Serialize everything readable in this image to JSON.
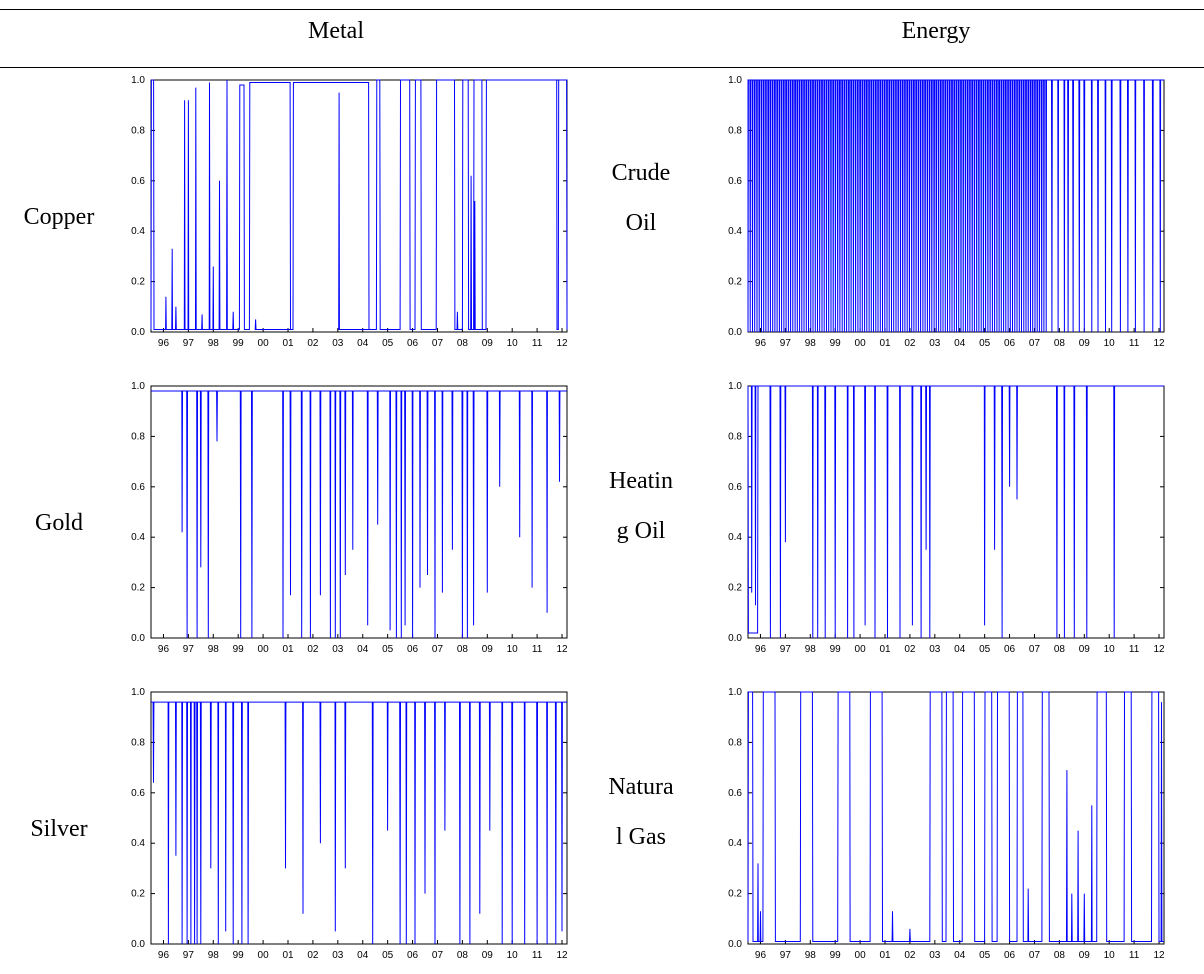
{
  "table": {
    "col_metal": "Metal",
    "col_energy": "Energy",
    "labels": {
      "copper": "Copper",
      "gold": "Gold",
      "silver": "Silver",
      "crude_1": "Crude",
      "crude_2": "Oil",
      "heating_1": "Heatin",
      "heating_2": "g Oil",
      "natgas_1": "Natura",
      "natgas_2": "l Gas"
    }
  },
  "colors": {
    "series": "#0000ff",
    "axis": "#000000"
  },
  "chart_data": [
    {
      "id": "copper",
      "type": "line",
      "ylim": [
        0,
        1
      ],
      "xlim": [
        1995.5,
        2012.2
      ],
      "yticks": [
        "0.0",
        "0.2",
        "0.4",
        "0.6",
        "0.8",
        "1.0"
      ],
      "xticks": [
        "96",
        "97",
        "98",
        "99",
        "00",
        "01",
        "02",
        "03",
        "04",
        "05",
        "06",
        "07",
        "08",
        "09",
        "10",
        "11",
        "12"
      ],
      "base": 0.01,
      "segments": [
        {
          "x0": 1995.5,
          "x1": 1995.62,
          "level": 1.0
        },
        {
          "x0": 1995.62,
          "x1": 1996.1,
          "level": 0.01
        },
        {
          "x0": 1999.05,
          "x1": 1999.25,
          "level": 0.98
        },
        {
          "x0": 1999.45,
          "x1": 2001.1,
          "level": 0.99
        },
        {
          "x0": 2001.2,
          "x1": 2004.25,
          "level": 0.99
        },
        {
          "x0": 2004.55,
          "x1": 2004.7,
          "level": 1.0
        },
        {
          "x0": 2005.5,
          "x1": 2005.9,
          "level": 1.0
        },
        {
          "x0": 2006.1,
          "x1": 2006.35,
          "level": 1.0
        },
        {
          "x0": 2006.95,
          "x1": 2007.7,
          "level": 1.0
        },
        {
          "x0": 2008.0,
          "x1": 2008.25,
          "level": 1.0
        },
        {
          "x0": 2008.45,
          "x1": 2008.8,
          "level": 1.0
        },
        {
          "x0": 2008.95,
          "x1": 2011.8,
          "level": 1.0
        },
        {
          "x0": 2011.85,
          "x1": 2012.2,
          "level": 1.0
        }
      ],
      "spikes": [
        {
          "x": 1996.1,
          "v": 0.14
        },
        {
          "x": 1996.35,
          "v": 0.33
        },
        {
          "x": 1996.5,
          "v": 0.1
        },
        {
          "x": 1996.85,
          "v": 0.92
        },
        {
          "x": 1997.0,
          "v": 0.92
        },
        {
          "x": 1997.3,
          "v": 0.97
        },
        {
          "x": 1997.55,
          "v": 0.07
        },
        {
          "x": 1997.85,
          "v": 0.99
        },
        {
          "x": 1998.0,
          "v": 0.26
        },
        {
          "x": 1998.25,
          "v": 0.6
        },
        {
          "x": 1998.55,
          "v": 1.0
        },
        {
          "x": 1998.8,
          "v": 0.08
        },
        {
          "x": 1999.7,
          "v": 0.05
        },
        {
          "x": 2003.05,
          "v": 0.95
        },
        {
          "x": 2007.8,
          "v": 0.08
        },
        {
          "x": 2008.35,
          "v": 0.62
        },
        {
          "x": 2008.5,
          "v": 0.52
        }
      ]
    },
    {
      "id": "crude",
      "type": "line",
      "ylim": [
        0,
        1
      ],
      "xlim": [
        1995.5,
        2012.2
      ],
      "yticks": [
        "0.0",
        "0.2",
        "0.4",
        "0.6",
        "0.8",
        "1.0"
      ],
      "xticks": [
        "96",
        "97",
        "98",
        "99",
        "00",
        "01",
        "02",
        "03",
        "04",
        "05",
        "06",
        "07",
        "08",
        "09",
        "10",
        "11",
        "12"
      ],
      "base": 1.0,
      "dense": {
        "from": 1995.5,
        "to": 2007.5,
        "step": 0.09,
        "low": 0.0
      },
      "sparse": [
        2007.7,
        2007.95,
        2008.2,
        2008.35,
        2008.55,
        2008.8,
        2009.0,
        2009.3,
        2009.55,
        2009.85,
        2010.1,
        2010.45,
        2010.75,
        2011.05,
        2011.4,
        2011.75,
        2012.05
      ]
    },
    {
      "id": "gold",
      "type": "line",
      "ylim": [
        0,
        1
      ],
      "xlim": [
        1995.5,
        2012.2
      ],
      "yticks": [
        "0.0",
        "0.2",
        "0.4",
        "0.6",
        "0.8",
        "1.0"
      ],
      "xticks": [
        "96",
        "97",
        "98",
        "99",
        "00",
        "01",
        "02",
        "03",
        "04",
        "05",
        "06",
        "07",
        "08",
        "09",
        "10",
        "11",
        "12"
      ],
      "base": 0.98,
      "spikes": [
        {
          "x": 1996.75,
          "v": 0.42
        },
        {
          "x": 1996.95,
          "v": 0.0
        },
        {
          "x": 1997.35,
          "v": 0.0
        },
        {
          "x": 1997.5,
          "v": 0.28
        },
        {
          "x": 1997.8,
          "v": 0.0
        },
        {
          "x": 1998.15,
          "v": 0.78
        },
        {
          "x": 1999.1,
          "v": 0.0
        },
        {
          "x": 1999.55,
          "v": 0.0
        },
        {
          "x": 2000.8,
          "v": 0.0
        },
        {
          "x": 2001.1,
          "v": 0.17
        },
        {
          "x": 2001.55,
          "v": 0.0
        },
        {
          "x": 2001.9,
          "v": 0.0
        },
        {
          "x": 2002.3,
          "v": 0.17
        },
        {
          "x": 2002.7,
          "v": 0.0
        },
        {
          "x": 2002.9,
          "v": 0.0
        },
        {
          "x": 2003.1,
          "v": 0.0
        },
        {
          "x": 2003.3,
          "v": 0.25
        },
        {
          "x": 2003.6,
          "v": 0.35
        },
        {
          "x": 2004.2,
          "v": 0.05
        },
        {
          "x": 2004.6,
          "v": 0.45
        },
        {
          "x": 2005.1,
          "v": 0.03
        },
        {
          "x": 2005.35,
          "v": 0.0
        },
        {
          "x": 2005.55,
          "v": 0.0
        },
        {
          "x": 2005.7,
          "v": 0.05
        },
        {
          "x": 2006.0,
          "v": 0.0
        },
        {
          "x": 2006.3,
          "v": 0.2
        },
        {
          "x": 2006.6,
          "v": 0.25
        },
        {
          "x": 2006.9,
          "v": 0.0
        },
        {
          "x": 2007.2,
          "v": 0.18
        },
        {
          "x": 2007.6,
          "v": 0.35
        },
        {
          "x": 2008.0,
          "v": 0.0
        },
        {
          "x": 2008.2,
          "v": 0.0
        },
        {
          "x": 2008.45,
          "v": 0.05
        },
        {
          "x": 2009.0,
          "v": 0.18
        },
        {
          "x": 2009.5,
          "v": 0.6
        },
        {
          "x": 2010.3,
          "v": 0.4
        },
        {
          "x": 2010.8,
          "v": 0.2
        },
        {
          "x": 2011.4,
          "v": 0.1
        },
        {
          "x": 2011.9,
          "v": 0.62
        }
      ]
    },
    {
      "id": "heating",
      "type": "line",
      "ylim": [
        0,
        1
      ],
      "xlim": [
        1995.5,
        2012.2
      ],
      "yticks": [
        "0.0",
        "0.2",
        "0.4",
        "0.6",
        "0.8",
        "1.0"
      ],
      "xticks": [
        "96",
        "97",
        "98",
        "99",
        "00",
        "01",
        "02",
        "03",
        "04",
        "05",
        "06",
        "07",
        "08",
        "09",
        "10",
        "11",
        "12"
      ],
      "base": 1.0,
      "segments": [
        {
          "x0": 1995.5,
          "x1": 1995.9,
          "level": 0.02
        }
      ],
      "spikes": [
        {
          "x": 1995.65,
          "v": 0.18
        },
        {
          "x": 1995.8,
          "v": 0.13
        },
        {
          "x": 1996.4,
          "v": 0.0
        },
        {
          "x": 1996.8,
          "v": 0.0
        },
        {
          "x": 1997.0,
          "v": 0.38
        },
        {
          "x": 1998.1,
          "v": 0.0
        },
        {
          "x": 1998.3,
          "v": 0.0
        },
        {
          "x": 1998.6,
          "v": 0.0
        },
        {
          "x": 1999.0,
          "v": 0.0
        },
        {
          "x": 1999.5,
          "v": 0.0
        },
        {
          "x": 1999.75,
          "v": 0.0
        },
        {
          "x": 2000.2,
          "v": 0.05
        },
        {
          "x": 2000.6,
          "v": 0.0
        },
        {
          "x": 2001.1,
          "v": 0.0
        },
        {
          "x": 2001.6,
          "v": 0.0
        },
        {
          "x": 2002.1,
          "v": 0.05
        },
        {
          "x": 2002.45,
          "v": 0.0
        },
        {
          "x": 2002.65,
          "v": 0.35
        },
        {
          "x": 2002.8,
          "v": 0.0
        },
        {
          "x": 2005.0,
          "v": 0.05
        },
        {
          "x": 2005.4,
          "v": 0.35
        },
        {
          "x": 2005.7,
          "v": 0.0
        },
        {
          "x": 2006.0,
          "v": 0.6
        },
        {
          "x": 2006.3,
          "v": 0.55
        },
        {
          "x": 2007.9,
          "v": 0.0
        },
        {
          "x": 2008.2,
          "v": 0.0
        },
        {
          "x": 2008.6,
          "v": 0.0
        },
        {
          "x": 2009.1,
          "v": 0.0
        },
        {
          "x": 2010.2,
          "v": 0.0
        }
      ]
    },
    {
      "id": "silver",
      "type": "line",
      "ylim": [
        0,
        1
      ],
      "xlim": [
        1995.5,
        2012.2
      ],
      "yticks": [
        "0.0",
        "0.2",
        "0.4",
        "0.6",
        "0.8",
        "1.0"
      ],
      "xticks": [
        "96",
        "97",
        "98",
        "99",
        "00",
        "01",
        "02",
        "03",
        "04",
        "05",
        "06",
        "07",
        "08",
        "09",
        "10",
        "11",
        "12"
      ],
      "base": 0.96,
      "spikes": [
        {
          "x": 1995.6,
          "v": 0.64
        },
        {
          "x": 1996.2,
          "v": 0.0
        },
        {
          "x": 1996.5,
          "v": 0.35
        },
        {
          "x": 1996.75,
          "v": 0.0
        },
        {
          "x": 1996.95,
          "v": 0.0
        },
        {
          "x": 1997.1,
          "v": 0.0
        },
        {
          "x": 1997.25,
          "v": 0.0
        },
        {
          "x": 1997.35,
          "v": 0.0
        },
        {
          "x": 1997.5,
          "v": 0.0
        },
        {
          "x": 1997.9,
          "v": 0.3
        },
        {
          "x": 1998.2,
          "v": 0.0
        },
        {
          "x": 1998.5,
          "v": 0.05
        },
        {
          "x": 1998.8,
          "v": 0.0
        },
        {
          "x": 1999.15,
          "v": 0.0
        },
        {
          "x": 1999.4,
          "v": 0.0
        },
        {
          "x": 2000.9,
          "v": 0.3
        },
        {
          "x": 2001.6,
          "v": 0.12
        },
        {
          "x": 2002.3,
          "v": 0.4
        },
        {
          "x": 2002.9,
          "v": 0.05
        },
        {
          "x": 2003.3,
          "v": 0.3
        },
        {
          "x": 2004.4,
          "v": 0.0
        },
        {
          "x": 2005.0,
          "v": 0.45
        },
        {
          "x": 2005.5,
          "v": 0.0
        },
        {
          "x": 2005.75,
          "v": 0.0
        },
        {
          "x": 2006.1,
          "v": 0.0
        },
        {
          "x": 2006.5,
          "v": 0.2
        },
        {
          "x": 2006.9,
          "v": 0.0
        },
        {
          "x": 2007.3,
          "v": 0.45
        },
        {
          "x": 2007.9,
          "v": 0.0
        },
        {
          "x": 2008.3,
          "v": 0.0
        },
        {
          "x": 2008.7,
          "v": 0.12
        },
        {
          "x": 2009.1,
          "v": 0.45
        },
        {
          "x": 2009.6,
          "v": 0.0
        },
        {
          "x": 2010.0,
          "v": 0.0
        },
        {
          "x": 2010.5,
          "v": 0.0
        },
        {
          "x": 2011.0,
          "v": 0.0
        },
        {
          "x": 2011.4,
          "v": 0.0
        },
        {
          "x": 2011.75,
          "v": 0.0
        },
        {
          "x": 2012.0,
          "v": 0.05
        }
      ]
    },
    {
      "id": "natgas",
      "type": "line",
      "ylim": [
        0,
        1
      ],
      "xlim": [
        1995.5,
        2012.2
      ],
      "yticks": [
        "0.0",
        "0.2",
        "0.4",
        "0.6",
        "0.8",
        "1.0"
      ],
      "xticks": [
        "96",
        "97",
        "98",
        "99",
        "00",
        "01",
        "02",
        "03",
        "04",
        "05",
        "06",
        "07",
        "08",
        "09",
        "10",
        "11",
        "12"
      ],
      "base": 0.01,
      "segments": [
        {
          "x0": 1995.5,
          "x1": 1995.7,
          "level": 1.0
        },
        {
          "x0": 1996.1,
          "x1": 1996.6,
          "level": 1.0
        },
        {
          "x0": 1997.6,
          "x1": 1998.1,
          "level": 1.0
        },
        {
          "x0": 1999.1,
          "x1": 1999.6,
          "level": 1.0
        },
        {
          "x0": 2000.4,
          "x1": 2000.9,
          "level": 1.0
        },
        {
          "x0": 2002.8,
          "x1": 2003.3,
          "level": 1.0
        },
        {
          "x0": 2003.45,
          "x1": 2003.75,
          "level": 1.0
        },
        {
          "x0": 2004.1,
          "x1": 2004.6,
          "level": 1.0
        },
        {
          "x0": 2005.0,
          "x1": 2005.3,
          "level": 1.0
        },
        {
          "x0": 2005.5,
          "x1": 2006.0,
          "level": 1.0
        },
        {
          "x0": 2006.3,
          "x1": 2006.55,
          "level": 1.0
        },
        {
          "x0": 2007.3,
          "x1": 2007.6,
          "level": 1.0
        },
        {
          "x0": 2009.5,
          "x1": 2009.9,
          "level": 1.0
        },
        {
          "x0": 2010.6,
          "x1": 2010.9,
          "level": 1.0
        },
        {
          "x0": 2011.7,
          "x1": 2012.0,
          "level": 1.0
        }
      ],
      "spikes": [
        {
          "x": 1995.9,
          "v": 0.32
        },
        {
          "x": 1996.0,
          "v": 0.13
        },
        {
          "x": 2001.3,
          "v": 0.13
        },
        {
          "x": 2002.0,
          "v": 0.06
        },
        {
          "x": 2006.75,
          "v": 0.22
        },
        {
          "x": 2008.3,
          "v": 0.69
        },
        {
          "x": 2008.5,
          "v": 0.2
        },
        {
          "x": 2008.75,
          "v": 0.45
        },
        {
          "x": 2009.0,
          "v": 0.2
        },
        {
          "x": 2009.3,
          "v": 0.55
        },
        {
          "x": 2012.1,
          "v": 0.96
        }
      ]
    }
  ]
}
